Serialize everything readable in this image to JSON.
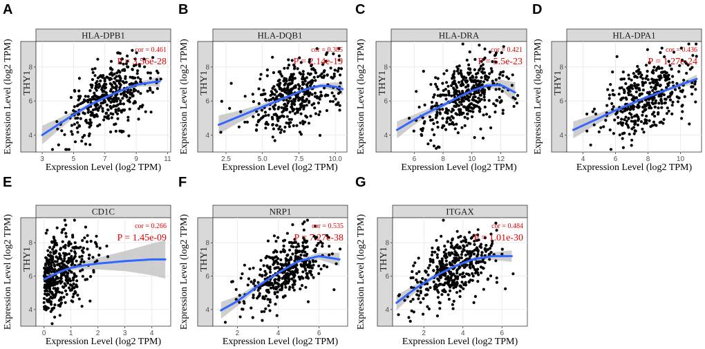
{
  "figure": {
    "ylabel": "Expression Level (log2 TPM)",
    "xlabel": "Expression Level (log2 TPM)"
  },
  "chart_data": [
    {
      "letter": "A",
      "type": "scatter",
      "title": "HLA-DPB1",
      "row_gene": "THY1",
      "xlabel": "Expression Level (log2 TPM)",
      "ylabel": "Expression Level (log2 TPM)",
      "xlim": [
        2.6,
        11.2
      ],
      "ylim": [
        3.0,
        9.5
      ],
      "xticks": [
        3,
        5,
        7,
        9,
        11
      ],
      "yticks": [
        4,
        6,
        8
      ],
      "cor": "cor = 0.461",
      "p": "P = 3.56e-28",
      "n_points": 420,
      "x_center": 7.3,
      "x_sd": 1.4,
      "x_range": [
        3.0,
        10.8
      ],
      "resid_sd": 0.9,
      "fit_x": [
        3.0,
        4.0,
        5.0,
        6.0,
        7.0,
        8.0,
        9.0,
        10.0,
        10.5
      ],
      "fit_y": [
        4.0,
        4.6,
        5.2,
        5.75,
        6.2,
        6.6,
        6.95,
        7.1,
        7.15
      ],
      "ci_half": [
        0.55,
        0.35,
        0.2,
        0.12,
        0.1,
        0.1,
        0.13,
        0.22,
        0.32
      ]
    },
    {
      "letter": "B",
      "type": "scatter",
      "title": "HLA-DQB1",
      "row_gene": "THY1",
      "xlabel": "Expression Level (log2 TPM)",
      "ylabel": "Expression Level (log2 TPM)",
      "xlim": [
        1.6,
        10.8
      ],
      "ylim": [
        3.0,
        9.5
      ],
      "xticks": [
        2.5,
        5.0,
        7.5,
        10.0
      ],
      "yticks": [
        4,
        6,
        8
      ],
      "cor": "cor = 0.385",
      "p": "P = 2.14e-19",
      "n_points": 420,
      "x_center": 7.3,
      "x_sd": 1.5,
      "x_range": [
        2.0,
        10.5
      ],
      "resid_sd": 1.0,
      "fit_x": [
        2.0,
        3.0,
        4.0,
        5.0,
        6.0,
        7.0,
        8.0,
        9.0,
        10.0,
        10.5
      ],
      "fit_y": [
        4.6,
        4.95,
        5.3,
        5.65,
        6.0,
        6.35,
        6.7,
        6.9,
        6.85,
        6.7
      ],
      "ci_half": [
        0.55,
        0.4,
        0.28,
        0.18,
        0.12,
        0.1,
        0.1,
        0.12,
        0.25,
        0.35
      ]
    },
    {
      "letter": "C",
      "type": "scatter",
      "title": "HLA-DRA",
      "row_gene": "THY1",
      "xlabel": "Expression Level (log2 TPM)",
      "ylabel": "Expression Level (log2 TPM)",
      "xlim": [
        4.4,
        13.8
      ],
      "ylim": [
        3.0,
        9.5
      ],
      "xticks": [
        6,
        8,
        10,
        12
      ],
      "yticks": [
        4,
        6,
        8
      ],
      "cor": "cor = 0.421",
      "p": "P = 5.5e-23",
      "n_points": 420,
      "x_center": 9.6,
      "x_sd": 1.5,
      "x_range": [
        4.8,
        13.2
      ],
      "resid_sd": 0.95,
      "fit_x": [
        4.8,
        6.0,
        7.0,
        8.0,
        9.0,
        10.0,
        11.0,
        12.0,
        13.0
      ],
      "fit_y": [
        4.3,
        4.9,
        5.35,
        5.75,
        6.2,
        6.6,
        6.9,
        6.95,
        6.5
      ],
      "ci_half": [
        0.5,
        0.3,
        0.2,
        0.14,
        0.1,
        0.1,
        0.14,
        0.3,
        0.6
      ]
    },
    {
      "letter": "D",
      "type": "scatter",
      "title": "HLA-DPA1",
      "row_gene": "THY1",
      "xlabel": "Expression Level (log2 TPM)",
      "ylabel": "Expression Level (log2 TPM)",
      "xlim": [
        3.0,
        11.3
      ],
      "ylim": [
        3.0,
        9.5
      ],
      "xticks": [
        4,
        6,
        8,
        10
      ],
      "yticks": [
        4,
        6,
        8
      ],
      "cor": "cor = 0.436",
      "p": "P = 1.27e-24",
      "n_points": 420,
      "x_center": 8.0,
      "x_sd": 1.4,
      "x_range": [
        3.4,
        11.0
      ],
      "resid_sd": 0.95,
      "fit_x": [
        3.4,
        5.0,
        6.0,
        7.0,
        8.0,
        9.0,
        10.0,
        11.0
      ],
      "fit_y": [
        4.3,
        5.0,
        5.45,
        5.85,
        6.25,
        6.6,
        6.95,
        7.3
      ],
      "ci_half": [
        0.5,
        0.28,
        0.18,
        0.12,
        0.1,
        0.1,
        0.14,
        0.25
      ]
    },
    {
      "letter": "E",
      "type": "scatter",
      "title": "CD1C",
      "row_gene": "THY1",
      "xlabel": "Expression Level (log2 TPM)",
      "ylabel": "Expression Level (log2 TPM)",
      "xlim": [
        -0.3,
        4.7
      ],
      "ylim": [
        3.0,
        9.5
      ],
      "xticks": [
        0,
        1,
        2,
        3,
        4
      ],
      "yticks": [
        4,
        6,
        8
      ],
      "cor": "cor = 0.266",
      "p": "P = 1.45e-09",
      "n_points": 420,
      "x_center": 0.6,
      "x_sd": 0.6,
      "x_range": [
        0.0,
        4.5
      ],
      "resid_sd": 1.1,
      "fit_x": [
        0.0,
        0.5,
        1.0,
        1.5,
        2.0,
        3.0,
        4.0,
        4.5
      ],
      "fit_y": [
        5.8,
        6.2,
        6.5,
        6.65,
        6.75,
        6.9,
        7.0,
        7.0
      ],
      "ci_half": [
        0.2,
        0.1,
        0.15,
        0.25,
        0.35,
        0.6,
        0.95,
        1.15
      ]
    },
    {
      "letter": "F",
      "type": "scatter",
      "title": "NRP1",
      "row_gene": "THY1",
      "xlabel": "Expression Level (log2 TPM)",
      "ylabel": "Expression Level (log2 TPM)",
      "xlim": [
        0.8,
        7.4
      ],
      "ylim": [
        3.0,
        9.5
      ],
      "xticks": [
        2,
        4,
        6
      ],
      "yticks": [
        4,
        6,
        8
      ],
      "cor": "cor = 0.535",
      "p": "P = 7.27e-38",
      "n_points": 420,
      "x_center": 4.3,
      "x_sd": 1.0,
      "x_range": [
        1.2,
        7.2
      ],
      "resid_sd": 0.85,
      "fit_x": [
        1.2,
        2.0,
        3.0,
        4.0,
        5.0,
        6.0,
        7.0
      ],
      "fit_y": [
        3.95,
        4.5,
        5.4,
        6.2,
        6.9,
        7.2,
        7.0
      ],
      "ci_half": [
        0.5,
        0.3,
        0.15,
        0.1,
        0.12,
        0.2,
        0.4
      ]
    },
    {
      "letter": "G",
      "type": "scatter",
      "title": "ITGAX",
      "row_gene": "THY1",
      "xlabel": "Expression Level (log2 TPM)",
      "ylabel": "Expression Level (log2 TPM)",
      "xlim": [
        0.4,
        7.3
      ],
      "ylim": [
        3.0,
        9.5
      ],
      "xticks": [
        2,
        4,
        6
      ],
      "yticks": [
        4,
        6,
        8
      ],
      "cor": "cor = 0.484",
      "p": "P = 1.01e-30",
      "n_points": 420,
      "x_center": 3.5,
      "x_sd": 1.1,
      "x_range": [
        0.6,
        6.6
      ],
      "resid_sd": 0.9,
      "fit_x": [
        0.6,
        1.5,
        2.5,
        3.5,
        4.5,
        5.5,
        6.5
      ],
      "fit_y": [
        4.4,
        5.2,
        5.95,
        6.55,
        7.0,
        7.2,
        7.2
      ],
      "ci_half": [
        0.45,
        0.25,
        0.14,
        0.1,
        0.12,
        0.22,
        0.35
      ]
    }
  ]
}
